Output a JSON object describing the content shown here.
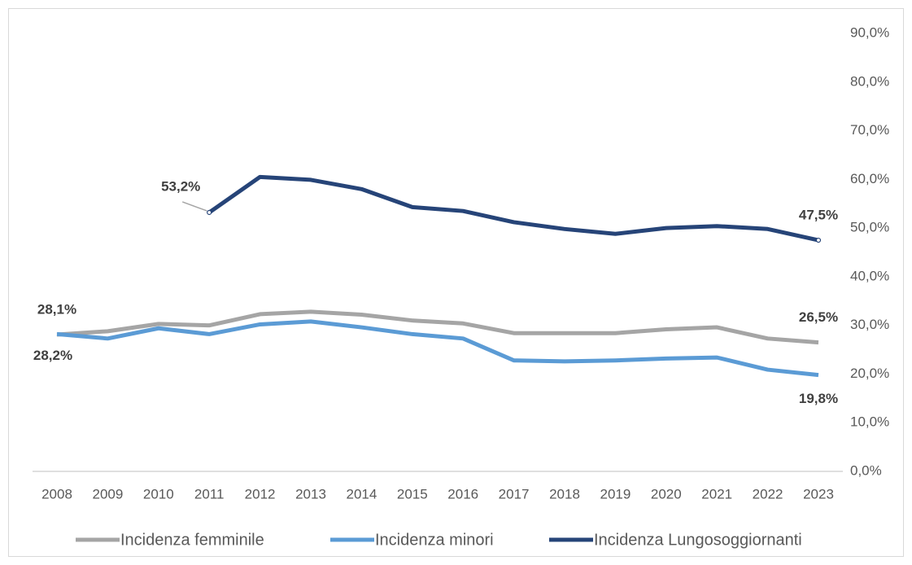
{
  "chart_data": {
    "type": "line",
    "categories": [
      "2008",
      "2009",
      "2010",
      "2011",
      "2012",
      "2013",
      "2014",
      "2015",
      "2016",
      "2017",
      "2018",
      "2019",
      "2020",
      "2021",
      "2022",
      "2023"
    ],
    "series": [
      {
        "name": "Incidenza femminile",
        "color": "#a5a5a5",
        "values": [
          28.1,
          28.8,
          30.3,
          30.0,
          32.3,
          32.8,
          32.2,
          31.0,
          30.4,
          28.4,
          28.4,
          28.4,
          29.2,
          29.6,
          27.3,
          26.5
        ],
        "value_labels": [
          "28,1%",
          null,
          null,
          null,
          null,
          null,
          null,
          null,
          null,
          null,
          null,
          null,
          null,
          null,
          null,
          "26,5%"
        ]
      },
      {
        "name": "Incidenza minori",
        "color": "#5b9bd5",
        "values": [
          28.2,
          27.3,
          29.4,
          28.2,
          30.2,
          30.8,
          29.6,
          28.2,
          27.3,
          22.8,
          22.6,
          22.8,
          23.2,
          23.4,
          20.9,
          19.8
        ],
        "value_labels": [
          "28,2%",
          null,
          null,
          null,
          null,
          null,
          null,
          null,
          null,
          null,
          null,
          null,
          null,
          null,
          null,
          "19,8%"
        ]
      },
      {
        "name": "Incidenza Lungosoggiornanti",
        "color": "#264478",
        "values": [
          null,
          null,
          null,
          53.2,
          60.5,
          59.9,
          58.0,
          54.3,
          53.5,
          51.2,
          49.8,
          48.8,
          50.0,
          50.4,
          49.8,
          47.5
        ],
        "value_labels": [
          null,
          null,
          null,
          "53,2%",
          null,
          null,
          null,
          null,
          null,
          null,
          null,
          null,
          null,
          null,
          null,
          "47,5%"
        ]
      }
    ],
    "ylim": [
      0,
      90
    ],
    "yticks": [
      {
        "value": 0,
        "label": "0,0%"
      },
      {
        "value": 10,
        "label": "10,0%"
      },
      {
        "value": 20,
        "label": "20,0%"
      },
      {
        "value": 30,
        "label": "30,0%"
      },
      {
        "value": 40,
        "label": "40,0%"
      },
      {
        "value": 50,
        "label": "50,0%"
      },
      {
        "value": 60,
        "label": "60,0%"
      },
      {
        "value": 70,
        "label": "70,0%"
      },
      {
        "value": 80,
        "label": "80,0%"
      },
      {
        "value": 90,
        "label": "90,0%"
      }
    ],
    "grid": false,
    "legend": "bottom"
  }
}
